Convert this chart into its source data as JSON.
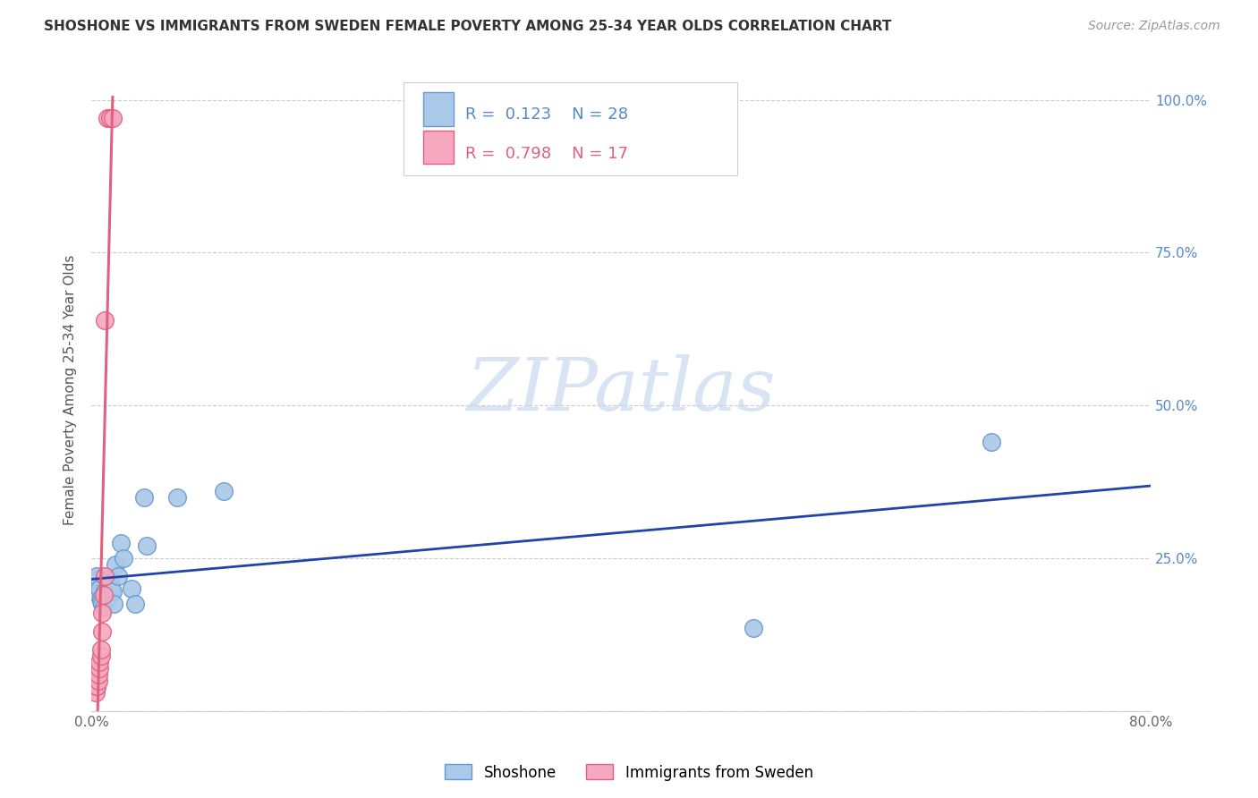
{
  "title": "SHOSHONE VS IMMIGRANTS FROM SWEDEN FEMALE POVERTY AMONG 25-34 YEAR OLDS CORRELATION CHART",
  "source": "Source: ZipAtlas.com",
  "ylabel": "Female Poverty Among 25-34 Year Olds",
  "xlim": [
    0.0,
    0.8
  ],
  "ylim": [
    0.0,
    1.05
  ],
  "xtick_positions": [
    0.0,
    0.1,
    0.2,
    0.3,
    0.4,
    0.5,
    0.6,
    0.7,
    0.8
  ],
  "xticklabels": [
    "0.0%",
    "",
    "",
    "",
    "",
    "",
    "",
    "",
    "80.0%"
  ],
  "ytick_positions": [
    0.0,
    0.25,
    0.5,
    0.75,
    1.0
  ],
  "yticklabels_right": [
    "",
    "25.0%",
    "50.0%",
    "75.0%",
    "100.0%"
  ],
  "shoshone_x": [
    0.003,
    0.004,
    0.005,
    0.006,
    0.007,
    0.007,
    0.008,
    0.009,
    0.01,
    0.011,
    0.012,
    0.013,
    0.014,
    0.015,
    0.016,
    0.017,
    0.018,
    0.02,
    0.022,
    0.024,
    0.03,
    0.033,
    0.04,
    0.042,
    0.065,
    0.1,
    0.5,
    0.68
  ],
  "shoshone_y": [
    0.215,
    0.22,
    0.19,
    0.2,
    0.185,
    0.18,
    0.175,
    0.17,
    0.195,
    0.19,
    0.185,
    0.215,
    0.21,
    0.2,
    0.195,
    0.175,
    0.24,
    0.22,
    0.275,
    0.25,
    0.2,
    0.175,
    0.35,
    0.27,
    0.35,
    0.36,
    0.135,
    0.44
  ],
  "sweden_x": [
    0.003,
    0.004,
    0.004,
    0.005,
    0.005,
    0.006,
    0.006,
    0.007,
    0.007,
    0.008,
    0.008,
    0.009,
    0.01,
    0.01,
    0.012,
    0.014,
    0.016
  ],
  "sweden_y": [
    0.03,
    0.04,
    0.04,
    0.05,
    0.06,
    0.07,
    0.08,
    0.09,
    0.1,
    0.13,
    0.16,
    0.19,
    0.22,
    0.64,
    0.97,
    0.97,
    0.97
  ],
  "shoshone_color": "#aac8e8",
  "shoshone_edge": "#6699cc",
  "sweden_color": "#f5a8c0",
  "sweden_edge": "#e06080",
  "blue_line_color": "#2244aa",
  "pink_line_color": "#e06080",
  "R_shoshone": 0.123,
  "N_shoshone": 28,
  "R_sweden": 0.798,
  "N_sweden": 17,
  "watermark_text": "ZIPatlas",
  "watermark_color": "#c8d8ee",
  "background_color": "#ffffff",
  "grid_color": "#cccccc"
}
